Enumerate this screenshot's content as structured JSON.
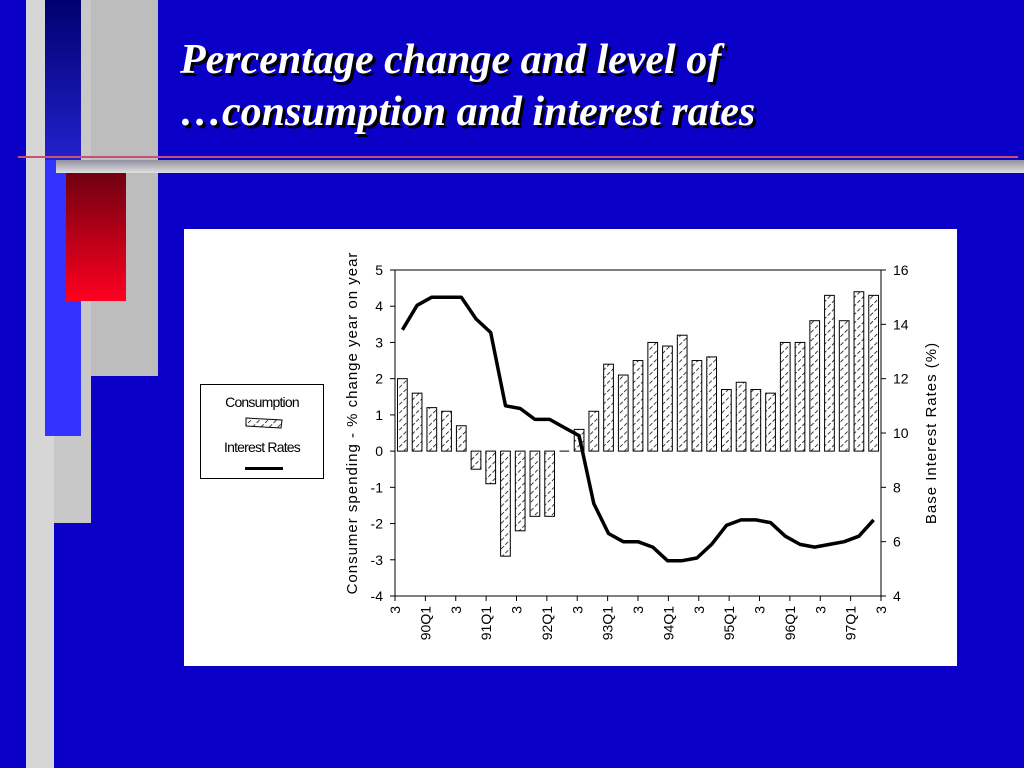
{
  "slide": {
    "title_line1": "Percentage change and level of",
    "title_line2": "…consumption and interest rates"
  },
  "legend": {
    "consumption_label": "Consumption",
    "interest_label": "Interest Rates"
  },
  "chart_data": {
    "type": "bar+line",
    "title": "",
    "ylabel_left": "Consumer spending - % change year on year",
    "ylabel_right": "Base Interest Rates (%)",
    "ylim_left": [
      -4,
      5
    ],
    "ylim_right": [
      4,
      16
    ],
    "yticks_left": [
      "5",
      "4",
      "3",
      "2",
      "1",
      "0",
      "-1",
      "-2",
      "-3",
      "-4"
    ],
    "yticks_right": [
      "16",
      "14",
      "12",
      "10",
      "8",
      "6",
      "4"
    ],
    "xticks": [
      "3",
      "90Q1",
      "3",
      "91Q1",
      "3",
      "92Q1",
      "3",
      "93Q1",
      "3",
      "94Q1",
      "3",
      "95Q1",
      "3",
      "96Q1",
      "3",
      "97Q1",
      "3"
    ],
    "legend_position": "left",
    "grid": false,
    "series": [
      {
        "name": "Consumption",
        "kind": "bar",
        "values": [
          2.0,
          1.6,
          1.2,
          1.1,
          0.7,
          -0.5,
          -0.9,
          -2.9,
          -2.2,
          -1.8,
          -1.8,
          0.0,
          0.6,
          1.1,
          2.4,
          2.1,
          2.5,
          3.0,
          2.9,
          3.2,
          2.5,
          2.6,
          1.7,
          1.9,
          1.7,
          1.6,
          3.0,
          3.0,
          3.6,
          4.3,
          3.6,
          4.4,
          4.3
        ]
      },
      {
        "name": "Interest Rates",
        "kind": "line",
        "values": [
          13.8,
          14.7,
          15.0,
          15.0,
          15.0,
          14.2,
          13.7,
          11.0,
          10.9,
          10.5,
          10.5,
          10.2,
          9.9,
          7.4,
          6.3,
          6.0,
          6.0,
          5.8,
          5.3,
          5.3,
          5.4,
          5.9,
          6.6,
          6.8,
          6.8,
          6.7,
          6.2,
          5.9,
          5.8,
          5.9,
          6.0,
          6.2,
          6.8
        ]
      }
    ]
  }
}
